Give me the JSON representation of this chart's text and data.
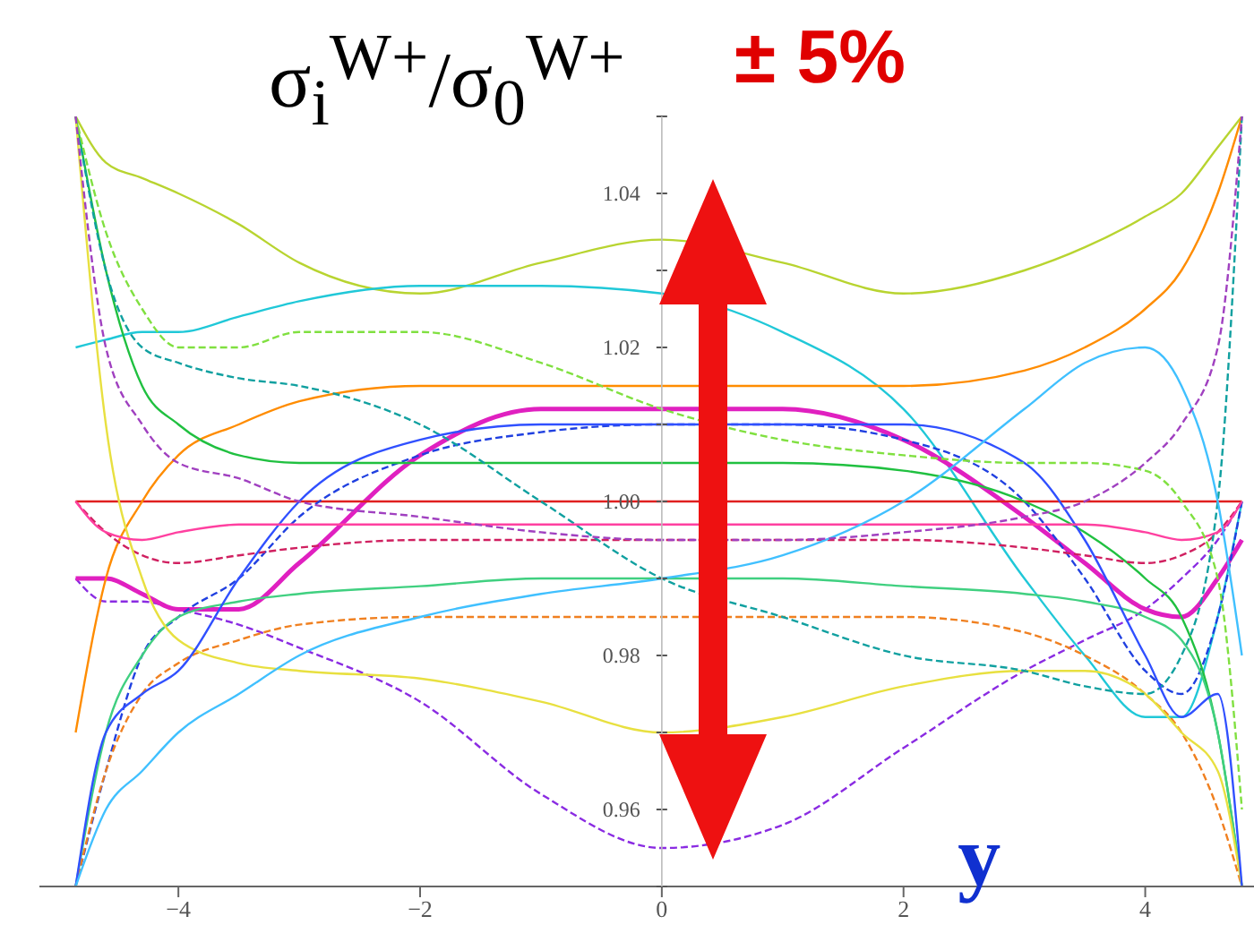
{
  "chart_data": {
    "type": "line",
    "ylabel": "σ$_{i}$$^{W+}$/σ$_{0}$$^{W+}$",
    "xlabel": "y",
    "annotations": [
      "± 5%"
    ],
    "x": [
      -4.85,
      -4.6,
      -4.3,
      -4,
      -3.5,
      -3,
      -2,
      -1,
      0,
      1,
      2,
      3,
      3.5,
      4,
      4.3,
      4.6,
      4.8
    ],
    "xlim": [
      -5.15,
      4.9
    ],
    "xticks": [
      {
        "value": -4,
        "label": "−4"
      },
      {
        "value": -2,
        "label": "−2"
      },
      0,
      2,
      4
    ],
    "ylim": [
      0.95,
      1.05
    ],
    "yticks": [
      {
        "value": 0.95,
        "label": null
      },
      {
        "value": 0.96,
        "label": "0.96"
      },
      {
        "value": 0.97,
        "label": null
      },
      {
        "value": 0.98,
        "label": "0.98"
      },
      {
        "value": 0.99,
        "label": null
      },
      {
        "value": 1.0,
        "label": "1.00"
      },
      {
        "value": 1.01,
        "label": null
      },
      {
        "value": 1.02,
        "label": "1.02"
      },
      {
        "value": 1.03,
        "label": null
      },
      {
        "value": 1.04,
        "label": "1.04"
      },
      {
        "value": 1.05,
        "label": null
      }
    ],
    "grid": false,
    "legend": false,
    "marker": "none",
    "line_style": "solid",
    "series": [
      {
        "color": "#b8d430",
        "values": [
          1.05,
          1.044,
          1.042,
          1.04,
          1.036,
          1.031,
          1.027,
          1.031,
          1.034,
          1.031,
          1.027,
          1.03,
          1.033,
          1.037,
          1.04,
          1.046,
          1.05
        ]
      },
      {
        "color": "#8a2be2",
        "line_style": "dashed",
        "values": [
          0.99,
          0.987,
          0.987,
          0.986,
          0.984,
          0.981,
          0.974,
          0.962,
          0.955,
          0.958,
          0.968,
          0.978,
          0.982,
          0.986,
          0.99,
          0.995,
          1.0
        ]
      },
      {
        "color": "#20c8d8",
        "values": [
          1.02,
          1.021,
          1.022,
          1.022,
          1.024,
          1.026,
          1.028,
          1.028,
          1.027,
          1.022,
          1.012,
          0.99,
          0.98,
          0.972,
          0.972,
          0.985,
          1.0
        ]
      },
      {
        "color": "#e020c0",
        "values": [
          0.99,
          0.99,
          0.988,
          0.986,
          0.986,
          0.992,
          1.006,
          1.012,
          1.012,
          1.012,
          1.008,
          0.998,
          0.992,
          0.986,
          0.985,
          0.99,
          0.995
        ]
      },
      {
        "color": "#e02020",
        "values": [
          1.0,
          1.0,
          1.0,
          1.0,
          1.0,
          1.0,
          1.0,
          1.0,
          1.0,
          1.0,
          1.0,
          1.0,
          1.0,
          1.0,
          1.0,
          1.0,
          1.0
        ]
      },
      {
        "color": "#ff8c00",
        "values": [
          0.97,
          0.99,
          1.0,
          1.006,
          1.01,
          1.013,
          1.015,
          1.015,
          1.015,
          1.015,
          1.015,
          1.017,
          1.02,
          1.025,
          1.03,
          1.04,
          1.05
        ]
      },
      {
        "color": "#2040e0",
        "line_style": "dashed",
        "values": [
          0.95,
          0.965,
          0.98,
          0.985,
          0.99,
          0.998,
          1.006,
          1.009,
          1.01,
          1.01,
          1.008,
          1.0,
          0.99,
          0.978,
          0.975,
          0.985,
          1.0
        ]
      },
      {
        "color": "#20c040",
        "values": [
          1.05,
          1.03,
          1.015,
          1.01,
          1.006,
          1.005,
          1.005,
          1.005,
          1.005,
          1.005,
          1.004,
          1.0,
          0.996,
          0.99,
          0.985,
          0.97,
          0.95
        ]
      },
      {
        "color": "#d02060",
        "line_style": "dashed",
        "values": [
          1.0,
          0.996,
          0.993,
          0.992,
          0.993,
          0.994,
          0.995,
          0.995,
          0.995,
          0.995,
          0.995,
          0.994,
          0.993,
          0.992,
          0.993,
          0.996,
          1.0
        ]
      },
      {
        "color": "#40d080",
        "values": [
          0.95,
          0.97,
          0.98,
          0.985,
          0.987,
          0.988,
          0.989,
          0.99,
          0.99,
          0.99,
          0.989,
          0.988,
          0.987,
          0.985,
          0.982,
          0.97,
          0.95
        ]
      },
      {
        "color": "#f08020",
        "line_style": "dashed",
        "values": [
          0.95,
          0.965,
          0.975,
          0.979,
          0.982,
          0.984,
          0.985,
          0.985,
          0.985,
          0.985,
          0.985,
          0.983,
          0.98,
          0.975,
          0.97,
          0.96,
          0.95
        ]
      },
      {
        "color": "#e8e040",
        "values": [
          1.05,
          1.01,
          0.99,
          0.982,
          0.979,
          0.978,
          0.977,
          0.974,
          0.97,
          0.972,
          0.976,
          0.978,
          0.978,
          0.975,
          0.97,
          0.965,
          0.95
        ]
      },
      {
        "color": "#10a0a0",
        "line_style": "dashed",
        "values": [
          1.05,
          1.03,
          1.02,
          1.018,
          1.016,
          1.015,
          1.01,
          1.0,
          0.99,
          0.985,
          0.98,
          0.978,
          0.976,
          0.975,
          0.98,
          1.0,
          1.05
        ]
      },
      {
        "color": "#3050ff",
        "values": [
          0.95,
          0.97,
          0.975,
          0.978,
          0.99,
          1.0,
          1.008,
          1.01,
          1.01,
          1.01,
          1.01,
          1.005,
          0.995,
          0.98,
          0.972,
          0.975,
          0.95
        ]
      },
      {
        "color": "#ff40a0",
        "values": [
          1.0,
          0.996,
          0.995,
          0.996,
          0.997,
          0.997,
          0.997,
          0.997,
          0.997,
          0.997,
          0.997,
          0.997,
          0.997,
          0.996,
          0.995,
          0.996,
          1.0
        ]
      },
      {
        "color": "#80e040",
        "line_style": "dashed",
        "values": [
          1.05,
          1.035,
          1.025,
          1.02,
          1.02,
          1.022,
          1.022,
          1.018,
          1.012,
          1.008,
          1.006,
          1.005,
          1.005,
          1.004,
          1.0,
          0.99,
          0.96
        ]
      },
      {
        "color": "#40c0ff",
        "values": [
          0.95,
          0.96,
          0.965,
          0.97,
          0.975,
          0.98,
          0.985,
          0.988,
          0.99,
          0.993,
          1.0,
          1.012,
          1.018,
          1.02,
          1.015,
          1.0,
          0.98
        ]
      },
      {
        "color": "#a040c0",
        "line_style": "dashed",
        "values": [
          1.05,
          1.02,
          1.01,
          1.005,
          1.003,
          1.0,
          0.998,
          0.996,
          0.995,
          0.995,
          0.996,
          0.998,
          1.0,
          1.005,
          1.01,
          1.02,
          1.05
        ]
      }
    ]
  }
}
